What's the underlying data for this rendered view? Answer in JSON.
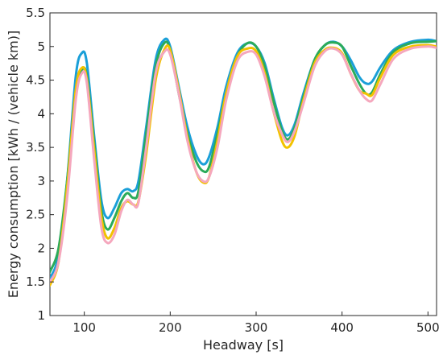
{
  "chart_data": {
    "type": "line",
    "title": "",
    "xlabel": "Headway [s]",
    "ylabel": "Energy consumption [kWh / (vehicle km)]",
    "xlim": [
      60,
      510
    ],
    "ylim": [
      1,
      5.5
    ],
    "xticks": [
      100,
      200,
      300,
      400,
      500
    ],
    "yticks": [
      1,
      1.5,
      2,
      2.5,
      3,
      3.5,
      4,
      4.5,
      5,
      5.5
    ],
    "ytick_labels": [
      "1",
      "1.5",
      "2",
      "2.5",
      "3",
      "3.5",
      "4",
      "4.5",
      "5",
      "5.5"
    ],
    "grid": true,
    "legend": "none",
    "series": [
      {
        "color": "#1a9fd8",
        "points": [
          [
            60,
            1.55
          ],
          [
            70,
            1.9
          ],
          [
            80,
            3.0
          ],
          [
            90,
            4.55
          ],
          [
            97,
            4.9
          ],
          [
            103,
            4.75
          ],
          [
            112,
            3.6
          ],
          [
            120,
            2.7
          ],
          [
            127,
            2.45
          ],
          [
            135,
            2.6
          ],
          [
            143,
            2.82
          ],
          [
            150,
            2.88
          ],
          [
            157,
            2.85
          ],
          [
            163,
            3.0
          ],
          [
            172,
            3.8
          ],
          [
            183,
            4.8
          ],
          [
            193,
            5.1
          ],
          [
            200,
            5.0
          ],
          [
            210,
            4.4
          ],
          [
            220,
            3.8
          ],
          [
            230,
            3.4
          ],
          [
            238,
            3.25
          ],
          [
            245,
            3.35
          ],
          [
            255,
            3.8
          ],
          [
            265,
            4.4
          ],
          [
            278,
            4.9
          ],
          [
            290,
            5.05
          ],
          [
            300,
            5.0
          ],
          [
            310,
            4.75
          ],
          [
            320,
            4.25
          ],
          [
            330,
            3.8
          ],
          [
            337,
            3.68
          ],
          [
            345,
            3.85
          ],
          [
            355,
            4.3
          ],
          [
            368,
            4.8
          ],
          [
            380,
            5.02
          ],
          [
            390,
            5.07
          ],
          [
            400,
            5.0
          ],
          [
            410,
            4.8
          ],
          [
            420,
            4.55
          ],
          [
            428,
            4.45
          ],
          [
            435,
            4.48
          ],
          [
            445,
            4.7
          ],
          [
            460,
            4.95
          ],
          [
            480,
            5.07
          ],
          [
            500,
            5.1
          ],
          [
            510,
            5.08
          ]
        ]
      },
      {
        "color": "#2bab5a",
        "points": [
          [
            60,
            1.65
          ],
          [
            70,
            2.0
          ],
          [
            80,
            3.0
          ],
          [
            90,
            4.35
          ],
          [
            97,
            4.65
          ],
          [
            103,
            4.55
          ],
          [
            112,
            3.5
          ],
          [
            120,
            2.55
          ],
          [
            127,
            2.28
          ],
          [
            135,
            2.45
          ],
          [
            143,
            2.7
          ],
          [
            150,
            2.82
          ],
          [
            157,
            2.75
          ],
          [
            163,
            2.85
          ],
          [
            172,
            3.7
          ],
          [
            183,
            4.7
          ],
          [
            193,
            5.05
          ],
          [
            200,
            4.95
          ],
          [
            210,
            4.3
          ],
          [
            220,
            3.7
          ],
          [
            230,
            3.3
          ],
          [
            238,
            3.15
          ],
          [
            245,
            3.2
          ],
          [
            255,
            3.7
          ],
          [
            265,
            4.3
          ],
          [
            278,
            4.85
          ],
          [
            290,
            5.05
          ],
          [
            300,
            5.0
          ],
          [
            310,
            4.7
          ],
          [
            320,
            4.2
          ],
          [
            330,
            3.75
          ],
          [
            337,
            3.62
          ],
          [
            345,
            3.8
          ],
          [
            355,
            4.25
          ],
          [
            368,
            4.8
          ],
          [
            380,
            5.02
          ],
          [
            390,
            5.06
          ],
          [
            400,
            5.0
          ],
          [
            410,
            4.72
          ],
          [
            420,
            4.45
          ],
          [
            428,
            4.3
          ],
          [
            435,
            4.32
          ],
          [
            445,
            4.6
          ],
          [
            460,
            4.92
          ],
          [
            480,
            5.05
          ],
          [
            500,
            5.07
          ],
          [
            510,
            5.08
          ]
        ]
      },
      {
        "color": "#f2c200",
        "points": [
          [
            60,
            1.45
          ],
          [
            70,
            1.8
          ],
          [
            80,
            2.9
          ],
          [
            90,
            4.35
          ],
          [
            97,
            4.68
          ],
          [
            103,
            4.5
          ],
          [
            112,
            3.4
          ],
          [
            120,
            2.45
          ],
          [
            127,
            2.15
          ],
          [
            135,
            2.3
          ],
          [
            143,
            2.6
          ],
          [
            150,
            2.7
          ],
          [
            157,
            2.65
          ],
          [
            163,
            2.7
          ],
          [
            172,
            3.4
          ],
          [
            183,
            4.5
          ],
          [
            193,
            4.95
          ],
          [
            200,
            4.95
          ],
          [
            210,
            4.35
          ],
          [
            220,
            3.65
          ],
          [
            230,
            3.15
          ],
          [
            238,
            2.98
          ],
          [
            245,
            3.05
          ],
          [
            255,
            3.6
          ],
          [
            265,
            4.3
          ],
          [
            278,
            4.85
          ],
          [
            290,
            4.97
          ],
          [
            300,
            4.93
          ],
          [
            310,
            4.6
          ],
          [
            320,
            4.05
          ],
          [
            330,
            3.6
          ],
          [
            337,
            3.5
          ],
          [
            345,
            3.68
          ],
          [
            355,
            4.2
          ],
          [
            368,
            4.75
          ],
          [
            380,
            4.95
          ],
          [
            390,
            4.98
          ],
          [
            400,
            4.9
          ],
          [
            410,
            4.6
          ],
          [
            420,
            4.35
          ],
          [
            428,
            4.3
          ],
          [
            435,
            4.28
          ],
          [
            445,
            4.55
          ],
          [
            460,
            4.88
          ],
          [
            480,
            5.0
          ],
          [
            500,
            5.02
          ],
          [
            510,
            5.0
          ]
        ]
      },
      {
        "color": "#f5a7bd",
        "points": [
          [
            60,
            1.5
          ],
          [
            70,
            1.8
          ],
          [
            80,
            2.75
          ],
          [
            90,
            4.2
          ],
          [
            97,
            4.6
          ],
          [
            103,
            4.45
          ],
          [
            112,
            3.25
          ],
          [
            120,
            2.3
          ],
          [
            127,
            2.08
          ],
          [
            135,
            2.2
          ],
          [
            143,
            2.55
          ],
          [
            150,
            2.72
          ],
          [
            157,
            2.65
          ],
          [
            163,
            2.68
          ],
          [
            172,
            3.5
          ],
          [
            183,
            4.6
          ],
          [
            193,
            4.92
          ],
          [
            200,
            4.88
          ],
          [
            210,
            4.3
          ],
          [
            220,
            3.6
          ],
          [
            230,
            3.15
          ],
          [
            238,
            3.0
          ],
          [
            245,
            3.05
          ],
          [
            255,
            3.5
          ],
          [
            265,
            4.2
          ],
          [
            278,
            4.78
          ],
          [
            290,
            4.92
          ],
          [
            300,
            4.88
          ],
          [
            310,
            4.55
          ],
          [
            320,
            4.05
          ],
          [
            330,
            3.7
          ],
          [
            337,
            3.58
          ],
          [
            345,
            3.75
          ],
          [
            355,
            4.15
          ],
          [
            368,
            4.7
          ],
          [
            380,
            4.93
          ],
          [
            390,
            4.97
          ],
          [
            400,
            4.88
          ],
          [
            410,
            4.6
          ],
          [
            420,
            4.35
          ],
          [
            428,
            4.22
          ],
          [
            435,
            4.2
          ],
          [
            445,
            4.45
          ],
          [
            460,
            4.82
          ],
          [
            480,
            4.97
          ],
          [
            500,
            5.0
          ],
          [
            510,
            4.98
          ]
        ]
      }
    ]
  }
}
